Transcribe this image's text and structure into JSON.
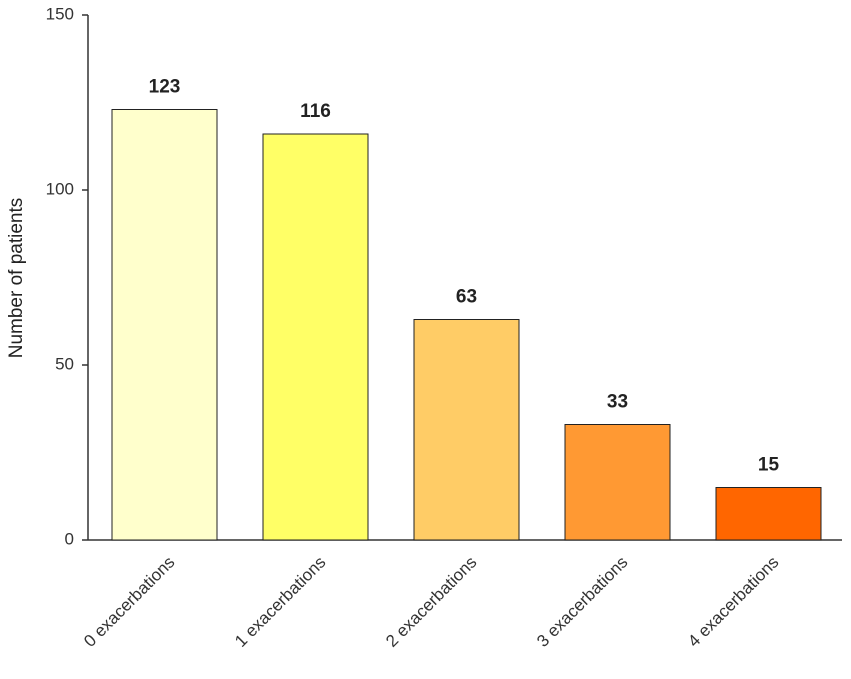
{
  "chart_data": {
    "type": "bar",
    "y_label": "Number of patients",
    "categories": [
      "0 exacerbations",
      "1 exacerbations",
      "2 exacerbations",
      "3 exacerbations",
      "4 exacerbations"
    ],
    "values": [
      123,
      116,
      63,
      33,
      15
    ],
    "colors": [
      "#ffffcc",
      "#ffff66",
      "#ffcc66",
      "#ff9933",
      "#ff6600"
    ],
    "ylim": [
      0,
      150
    ],
    "yticks": [
      0,
      50,
      100,
      150
    ],
    "grid": false
  }
}
